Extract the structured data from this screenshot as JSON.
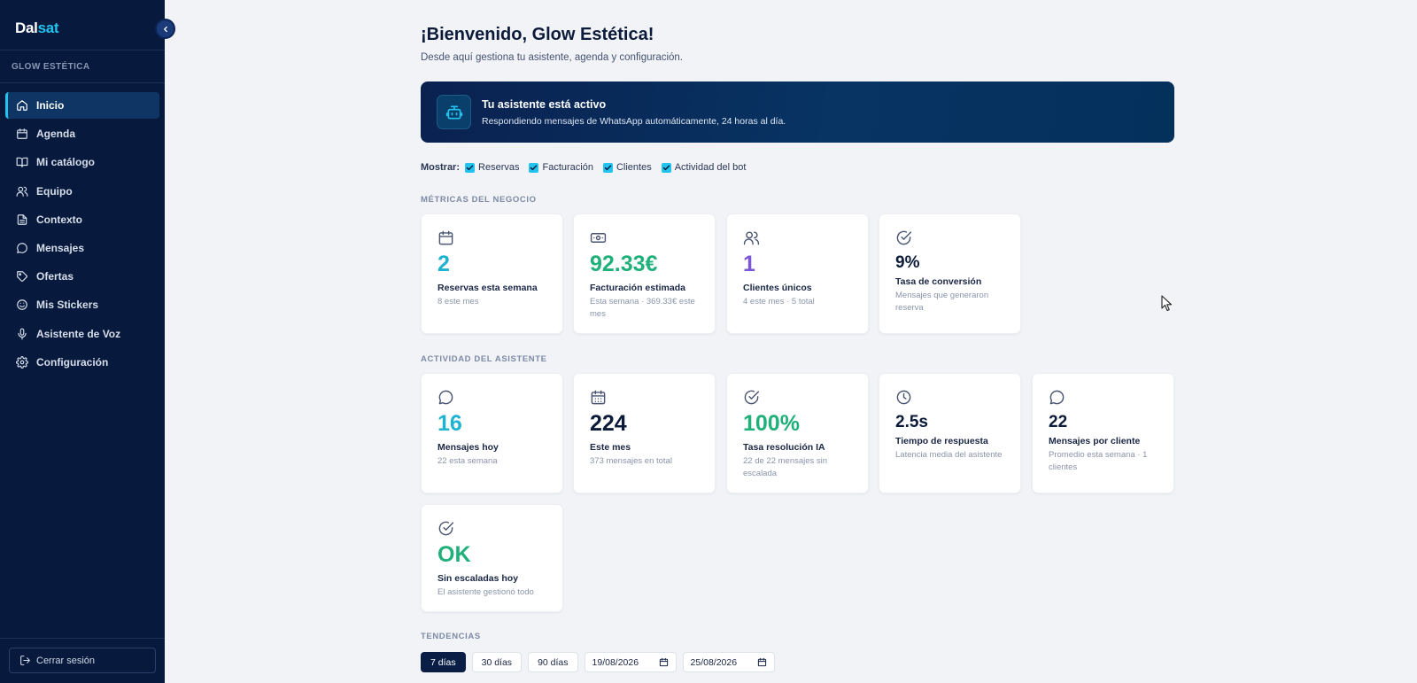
{
  "brand": {
    "prefix": "Dal",
    "accent": "sat"
  },
  "sidebar": {
    "workspace": "GLOW ESTÉTICA",
    "items": [
      {
        "label": "Inicio",
        "icon": "home-icon",
        "active": true
      },
      {
        "label": "Agenda",
        "icon": "calendar-icon"
      },
      {
        "label": "Mi catálogo",
        "icon": "book-icon"
      },
      {
        "label": "Equipo",
        "icon": "users-icon"
      },
      {
        "label": "Contexto",
        "icon": "document-icon"
      },
      {
        "label": "Mensajes",
        "icon": "chat-icon"
      },
      {
        "label": "Ofertas",
        "icon": "tag-icon"
      },
      {
        "label": "Mis Stickers",
        "icon": "smiley-icon"
      },
      {
        "label": "Asistente de Voz",
        "icon": "microphone-icon"
      },
      {
        "label": "Configuración",
        "icon": "gear-icon"
      }
    ],
    "logout": "Cerrar sesión"
  },
  "header": {
    "title": "¡Bienvenido, Glow Estética!",
    "subtitle": "Desde aquí gestiona tu asistente, agenda y configuración."
  },
  "banner": {
    "title": "Tu asistente está activo",
    "text": "Respondiendo mensajes de WhatsApp automáticamente, 24 horas al día.",
    "icon": "robot-icon"
  },
  "filters": {
    "label": "Mostrar:",
    "options": [
      {
        "label": "Reservas",
        "checked": true
      },
      {
        "label": "Facturación",
        "checked": true
      },
      {
        "label": "Clientes",
        "checked": true
      },
      {
        "label": "Actividad del bot",
        "checked": true
      }
    ]
  },
  "metrics": {
    "title": "MÉTRICAS DEL NEGOCIO",
    "cards": [
      {
        "icon": "calendar-icon",
        "value": "2",
        "label": "Reservas esta semana",
        "desc": "8 este mes",
        "color": "#1fb3d2"
      },
      {
        "icon": "cash-icon",
        "value": "92.33€",
        "label": "Facturación estimada",
        "desc": "Esta semana · 369.33€ este mes",
        "color": "#20b07a"
      },
      {
        "icon": "users-icon",
        "value": "1",
        "label": "Clientes únicos",
        "desc": "4 este mes · 5 total",
        "color": "#7b56d8"
      },
      {
        "icon": "check-circle-icon",
        "value": "9%",
        "label": "Tasa de conversión",
        "desc": "Mensajes que generaron reserva",
        "color": "#0d1b3a"
      }
    ]
  },
  "activity": {
    "title": "ACTIVIDAD DEL ASISTENTE",
    "cards": [
      {
        "icon": "chat-icon",
        "value": "16",
        "label": "Mensajes hoy",
        "desc": "22 esta semana",
        "color": "#1fb3d2"
      },
      {
        "icon": "calendar-grid-icon",
        "value": "224",
        "label": "Este mes",
        "desc": "373 mensajes en total",
        "color": "#0d1b3a"
      },
      {
        "icon": "check-circle-icon",
        "value": "100%",
        "label": "Tasa resolución IA",
        "desc": "22 de 22 mensajes sin escalada",
        "color": "#20b07a"
      },
      {
        "icon": "clock-icon",
        "value": "2.5s",
        "label": "Tiempo de respuesta",
        "desc": "Latencia media del asistente",
        "color": "#0d1b3a"
      },
      {
        "icon": "chat-icon",
        "value": "22",
        "label": "Mensajes por cliente",
        "desc": "Promedio esta semana · 1 clientes",
        "color": "#0d1b3a"
      },
      {
        "icon": "check-circle-icon",
        "value": "OK",
        "label": "Sin escaladas hoy",
        "desc": "El asistente gestionó todo",
        "color": "#20b07a"
      }
    ]
  },
  "trends": {
    "title": "TENDENCIAS",
    "ranges": [
      {
        "label": "7 días",
        "active": true
      },
      {
        "label": "30 días"
      },
      {
        "label": "90 días"
      }
    ],
    "date_from": "19/08/2026",
    "date_to": "25/08/2026"
  }
}
